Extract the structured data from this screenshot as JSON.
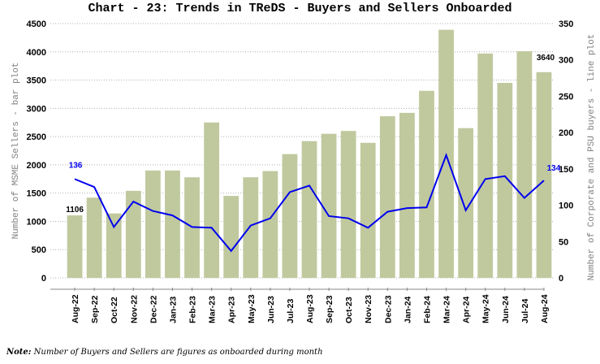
{
  "chart_data": {
    "type": "bar",
    "title": "Chart - 23: Trends in TReDS - Buyers and Sellers Onboarded",
    "categories": [
      "Aug-22",
      "Sep-22",
      "Oct-22",
      "Nov-22",
      "Dec-22",
      "Jan-23",
      "Feb-23",
      "Mar-23",
      "Apr-23",
      "May-23",
      "Jun-23",
      "Jul-23",
      "Aug-23",
      "Sep-23",
      "Oct-23",
      "Nov-23",
      "Dec-23",
      "Jan-24",
      "Feb-24",
      "Mar-24",
      "Apr-24",
      "May-24",
      "Jun-24",
      "Jul-24",
      "Aug-24"
    ],
    "series": [
      {
        "name": "MSME Sellers",
        "type": "bar",
        "axis": "left",
        "color": "#c0c99e",
        "values": [
          1106,
          1420,
          1140,
          1540,
          1900,
          1900,
          1780,
          2750,
          1450,
          1780,
          1890,
          2190,
          2420,
          2550,
          2600,
          2390,
          2860,
          2920,
          3310,
          4390,
          2650,
          3970,
          3450,
          4010,
          3640
        ]
      },
      {
        "name": "Corporate and PSU buyers",
        "type": "line",
        "axis": "right",
        "color": "#0000ee",
        "values": [
          136,
          125,
          70,
          105,
          92,
          86,
          70,
          69,
          37,
          72,
          82,
          118,
          127,
          85,
          82,
          69,
          91,
          96,
          97,
          169,
          93,
          136,
          140,
          110,
          134
        ]
      }
    ],
    "ylabel": "Number of MSME Sellers - bar plot",
    "y2label": "Number of Corporate and PSU buyers - line plot",
    "ylim": [
      0,
      4500
    ],
    "y2lim": [
      0,
      350
    ],
    "yticks": [
      "0",
      "500",
      "1000",
      "1500",
      "2000",
      "2500",
      "3000",
      "3500",
      "4000",
      "4500"
    ],
    "y2ticks": [
      "0",
      "50",
      "100",
      "150",
      "200",
      "250",
      "300",
      "350"
    ],
    "data_labels": {
      "bar_first": "1106",
      "bar_last": "3640",
      "line_first": "136",
      "line_last": "134"
    },
    "grid": true
  },
  "note": {
    "bold": "Note:",
    "text": " Number of Buyers and Sellers are figures as onboarded during month"
  }
}
